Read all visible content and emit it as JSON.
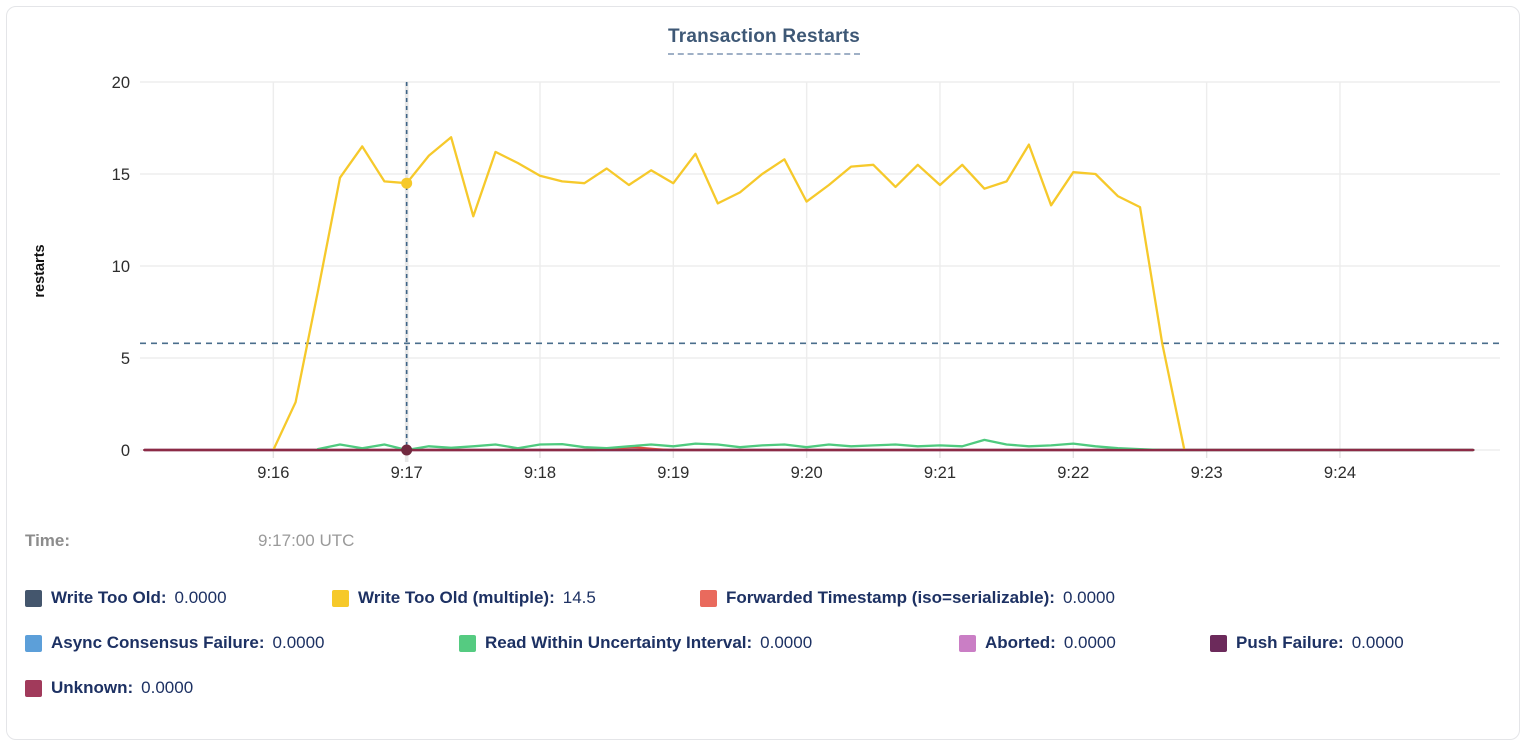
{
  "title": "Transaction Restarts",
  "tooltip": {
    "time_label": "Time:",
    "time_value": "9:17:00 UTC"
  },
  "legend": {
    "rows": [
      [
        {
          "label": "Write Too Old:",
          "value": "0.0000",
          "color": "#44566D"
        },
        {
          "label": "Write Too Old (multiple):",
          "value": "14.5",
          "color": "#F6C92A"
        },
        {
          "label": "Forwarded Timestamp (iso=serializable):",
          "value": "0.0000",
          "color": "#E96A5D"
        }
      ],
      [
        {
          "label": "Async Consensus Failure:",
          "value": "0.0000",
          "color": "#5C9FD9"
        },
        {
          "label": "Read Within Uncertainty Interval:",
          "value": "0.0000",
          "color": "#55CB81"
        },
        {
          "label": "Aborted:",
          "value": "0.0000",
          "color": "#CA7EC5"
        },
        {
          "label": "Push Failure:",
          "value": "0.0000",
          "color": "#6C2A5B"
        }
      ],
      [
        {
          "label": "Unknown:",
          "value": "0.0000",
          "color": "#A13A5B"
        }
      ]
    ]
  },
  "chart_data": {
    "type": "line",
    "title": "Transaction Restarts",
    "ylabel": "restarts",
    "ylim": [
      0,
      20
    ],
    "yticks": [
      0,
      5,
      10,
      15,
      20
    ],
    "x_domain_seconds_after_915": [
      0,
      600
    ],
    "xticks": [
      {
        "sec": 60,
        "label": "9:16"
      },
      {
        "sec": 120,
        "label": "9:17"
      },
      {
        "sec": 180,
        "label": "9:18"
      },
      {
        "sec": 240,
        "label": "9:19"
      },
      {
        "sec": 300,
        "label": "9:20"
      },
      {
        "sec": 360,
        "label": "9:21"
      },
      {
        "sec": 420,
        "label": "9:22"
      },
      {
        "sec": 480,
        "label": "9:23"
      },
      {
        "sec": 540,
        "label": "9:24"
      }
    ],
    "grid": true,
    "legend_position": "bottom",
    "reference_line_value": 5.8,
    "crosshair": {
      "sec": 120,
      "time": "9:17:00 UTC",
      "points": [
        {
          "series": "Write Too Old (multiple)",
          "value": 14.5,
          "color": "#F6C92A"
        },
        {
          "series": "Unknown",
          "value": 0,
          "color": "#71293F"
        }
      ]
    },
    "series": [
      {
        "name": "Write Too Old",
        "color": "#44566D",
        "points": [
          [
            2,
            0
          ],
          [
            600,
            0
          ]
        ]
      },
      {
        "name": "Async Consensus Failure",
        "color": "#5C9FD9",
        "points": [
          [
            2,
            0
          ],
          [
            600,
            0
          ]
        ]
      },
      {
        "name": "Aborted",
        "color": "#CA7EC5",
        "points": [
          [
            2,
            0
          ],
          [
            600,
            0
          ]
        ]
      },
      {
        "name": "Push Failure",
        "color": "#6C2A5B",
        "points": [
          [
            2,
            0
          ],
          [
            600,
            0
          ]
        ]
      },
      {
        "name": "Forwarded Timestamp (iso=serializable)",
        "color": "#DC4C43",
        "points": [
          [
            2,
            0
          ],
          [
            205,
            0
          ],
          [
            215,
            0.1
          ],
          [
            222,
            0.15
          ],
          [
            232,
            0.05
          ],
          [
            238,
            0
          ],
          [
            600,
            0
          ]
        ]
      },
      {
        "name": "Read Within Uncertainty Interval",
        "color": "#4FCA7F",
        "points": [
          [
            80,
            0.05
          ],
          [
            90,
            0.3
          ],
          [
            100,
            0.1
          ],
          [
            110,
            0.3
          ],
          [
            120,
            0
          ],
          [
            130,
            0.2
          ],
          [
            140,
            0.12
          ],
          [
            150,
            0.2
          ],
          [
            160,
            0.3
          ],
          [
            170,
            0.1
          ],
          [
            180,
            0.3
          ],
          [
            190,
            0.32
          ],
          [
            200,
            0.15
          ],
          [
            210,
            0.1
          ],
          [
            220,
            0.2
          ],
          [
            230,
            0.3
          ],
          [
            240,
            0.2
          ],
          [
            250,
            0.35
          ],
          [
            260,
            0.3
          ],
          [
            270,
            0.15
          ],
          [
            280,
            0.25
          ],
          [
            290,
            0.3
          ],
          [
            300,
            0.15
          ],
          [
            310,
            0.3
          ],
          [
            320,
            0.2
          ],
          [
            330,
            0.25
          ],
          [
            340,
            0.3
          ],
          [
            350,
            0.2
          ],
          [
            360,
            0.25
          ],
          [
            370,
            0.2
          ],
          [
            380,
            0.55
          ],
          [
            390,
            0.3
          ],
          [
            400,
            0.2
          ],
          [
            410,
            0.25
          ],
          [
            420,
            0.35
          ],
          [
            430,
            0.2
          ],
          [
            440,
            0.1
          ],
          [
            450,
            0.05
          ],
          [
            460,
            0
          ],
          [
            600,
            0
          ]
        ]
      },
      {
        "name": "Write Too Old (multiple)",
        "color": "#F6C92B",
        "points": [
          [
            60,
            0
          ],
          [
            70,
            2.6
          ],
          [
            80,
            8.6
          ],
          [
            90,
            14.8
          ],
          [
            100,
            16.5
          ],
          [
            110,
            14.6
          ],
          [
            120,
            14.5
          ],
          [
            130,
            16.0
          ],
          [
            140,
            17.0
          ],
          [
            150,
            12.7
          ],
          [
            160,
            16.2
          ],
          [
            170,
            15.6
          ],
          [
            180,
            14.9
          ],
          [
            190,
            14.6
          ],
          [
            200,
            14.5
          ],
          [
            210,
            15.3
          ],
          [
            220,
            14.4
          ],
          [
            230,
            15.2
          ],
          [
            240,
            14.5
          ],
          [
            250,
            16.1
          ],
          [
            260,
            13.4
          ],
          [
            270,
            14.0
          ],
          [
            280,
            15.0
          ],
          [
            290,
            15.8
          ],
          [
            300,
            13.5
          ],
          [
            310,
            14.4
          ],
          [
            320,
            15.4
          ],
          [
            330,
            15.5
          ],
          [
            340,
            14.3
          ],
          [
            350,
            15.5
          ],
          [
            360,
            14.4
          ],
          [
            370,
            15.5
          ],
          [
            380,
            14.2
          ],
          [
            390,
            14.6
          ],
          [
            400,
            16.6
          ],
          [
            410,
            13.3
          ],
          [
            420,
            15.1
          ],
          [
            430,
            15.0
          ],
          [
            440,
            13.8
          ],
          [
            450,
            13.2
          ],
          [
            460,
            5.8
          ],
          [
            470,
            0
          ]
        ]
      },
      {
        "name": "Unknown",
        "color": "#8C2B46",
        "points": [
          [
            2,
            0
          ],
          [
            600,
            0
          ]
        ]
      }
    ]
  }
}
